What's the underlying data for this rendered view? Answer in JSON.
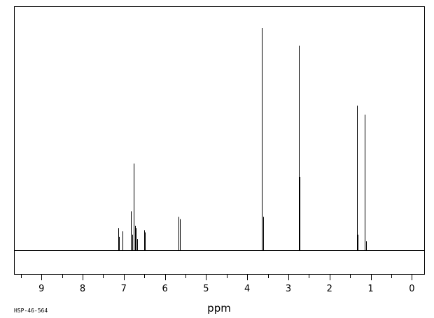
{
  "chart_data": {
    "type": "line",
    "title": "",
    "xlabel": "ppm",
    "ylabel": "",
    "xlim": [
      9.65,
      -0.3
    ],
    "ylim": [
      0,
      1.0
    ],
    "x_reversed": true,
    "grid": false,
    "x_ticks": [
      9,
      8,
      7,
      6,
      5,
      4,
      3,
      2,
      1,
      0
    ],
    "x_tick_labels": [
      "9",
      "8",
      "7",
      "6",
      "5",
      "4",
      "3",
      "2",
      "1",
      "0"
    ],
    "series": [
      {
        "peaks": [
          {
            "x": 7.13,
            "y": 0.1
          },
          {
            "x": 7.11,
            "y": 0.06
          },
          {
            "x": 7.03,
            "y": 0.085
          },
          {
            "x": 6.82,
            "y": 0.175
          },
          {
            "x": 6.79,
            "y": 0.07
          },
          {
            "x": 6.76,
            "y": 0.39
          },
          {
            "x": 6.73,
            "y": 0.11
          },
          {
            "x": 6.7,
            "y": 0.1
          },
          {
            "x": 6.68,
            "y": 0.05
          },
          {
            "x": 6.5,
            "y": 0.09
          },
          {
            "x": 6.48,
            "y": 0.08
          },
          {
            "x": 5.67,
            "y": 0.15
          },
          {
            "x": 5.64,
            "y": 0.14
          },
          {
            "x": 3.64,
            "y": 1.0
          },
          {
            "x": 3.62,
            "y": 0.15
          },
          {
            "x": 2.74,
            "y": 0.92
          },
          {
            "x": 2.72,
            "y": 0.33
          },
          {
            "x": 1.33,
            "y": 0.65
          },
          {
            "x": 1.31,
            "y": 0.07
          },
          {
            "x": 1.14,
            "y": 0.61
          },
          {
            "x": 1.12,
            "y": 0.04
          }
        ]
      }
    ]
  },
  "footer": {
    "code": "HSP-46-564"
  }
}
